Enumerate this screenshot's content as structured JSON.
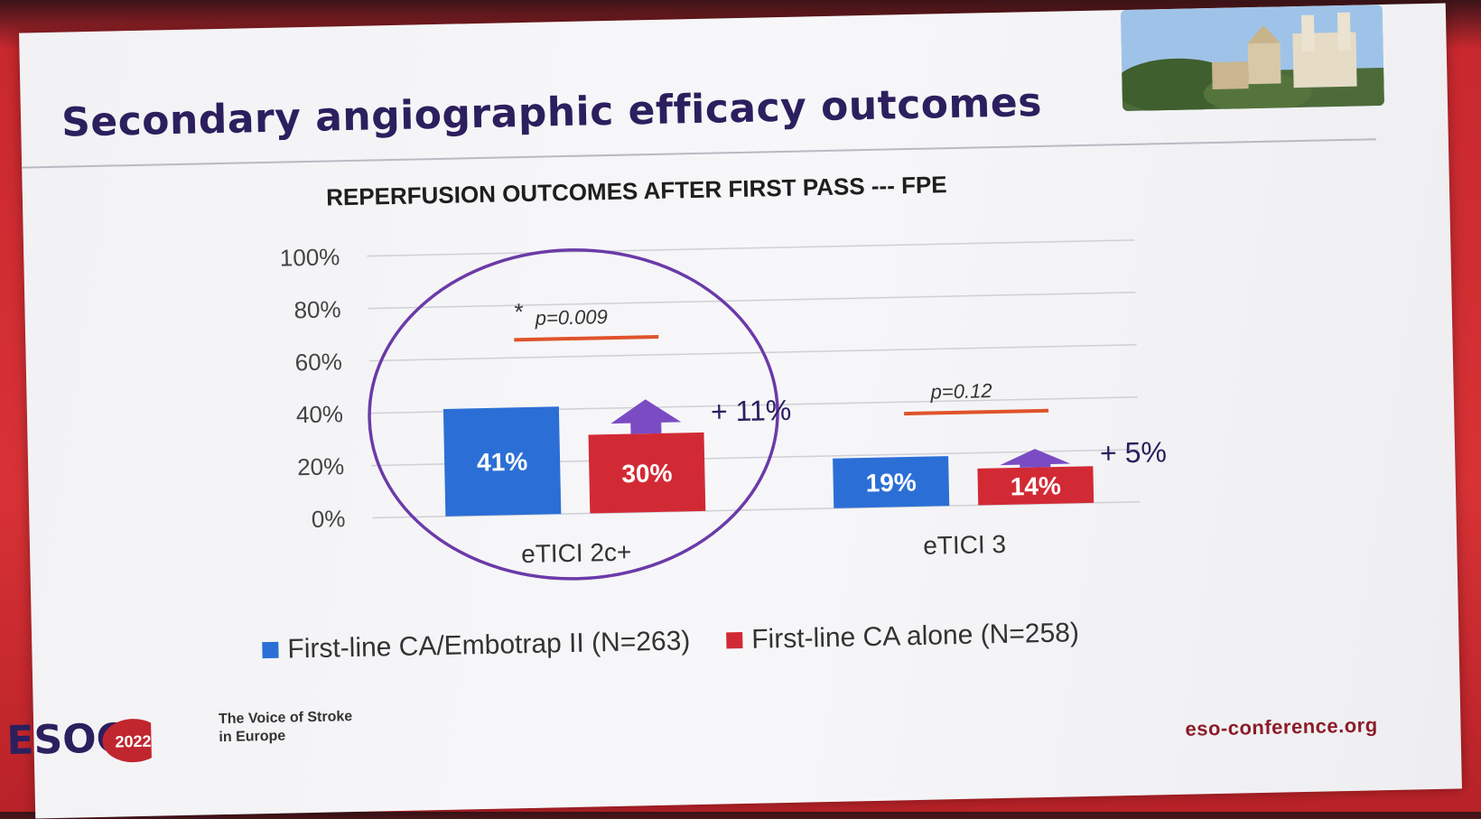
{
  "slide": {
    "title": "Secondary angiographic efficacy outcomes",
    "tagline": "The Voice of Stroke\nin Europe",
    "logo_text": "ESOC",
    "logo_year": "2022",
    "website": "eso-conference.org"
  },
  "colors": {
    "series1": "#2b6fd6",
    "series2": "#d22a35",
    "arrow": "#7b4bc4",
    "highlight_circle": "#6b3aa8",
    "pvalue_line": "#e0532c",
    "title": "#2c1f5e"
  },
  "chart_data": {
    "type": "bar",
    "title": "REPERFUSION OUTCOMES AFTER FIRST PASS --- FPE",
    "categories": [
      "eTICI 2c+",
      "eTICI 3"
    ],
    "series": [
      {
        "name": "First-line CA/Embotrap II (N=263)",
        "values": [
          41,
          19
        ],
        "labels": [
          "41%",
          "19%"
        ]
      },
      {
        "name": "First-line CA alone (N=258)",
        "values": [
          30,
          14
        ],
        "labels": [
          "30%",
          "14%"
        ]
      }
    ],
    "ylim": [
      0,
      100
    ],
    "yticks": [
      0,
      20,
      40,
      60,
      80,
      100
    ],
    "ytick_labels": [
      "0%",
      "20%",
      "40%",
      "60%",
      "80%",
      "100%"
    ],
    "grid": true,
    "legend_position": "bottom",
    "annotations": [
      {
        "category": "eTICI 2c+",
        "pvalue": "p=0.009",
        "marker": "*",
        "difference": "+ 11%",
        "highlighted": true
      },
      {
        "category": "eTICI 3",
        "pvalue": "p=0.12",
        "marker": "",
        "difference": "+ 5%",
        "highlighted": false
      }
    ]
  }
}
